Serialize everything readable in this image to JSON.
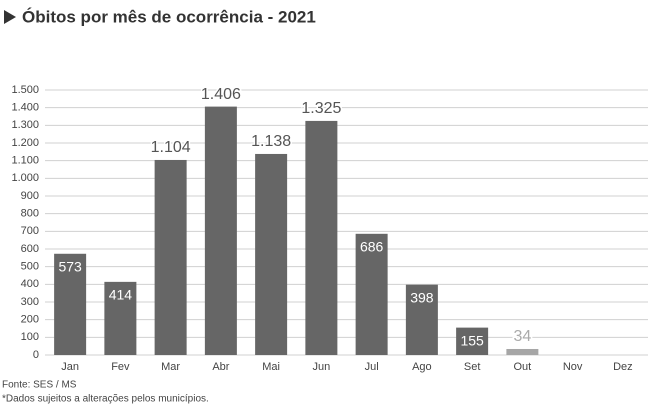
{
  "chart_data": {
    "type": "bar",
    "title": "Óbitos por mês de ocorrência - 2021",
    "categories": [
      "Jan",
      "Fev",
      "Mar",
      "Abr",
      "Mai",
      "Jun",
      "Jul",
      "Ago",
      "Set",
      "Out",
      "Nov",
      "Dez"
    ],
    "values": [
      573,
      414,
      1104,
      1406,
      1138,
      1325,
      686,
      398,
      155,
      34,
      null,
      null
    ],
    "value_labels": [
      "573",
      "414",
      "1.104",
      "1.406",
      "1.138",
      "1.325",
      "686",
      "398",
      "155",
      "34",
      null,
      null
    ],
    "colors": [
      "#666666",
      "#666666",
      "#666666",
      "#666666",
      "#666666",
      "#666666",
      "#666666",
      "#666666",
      "#666666",
      "#a6a6a6",
      "#666666",
      "#666666"
    ],
    "ylim": [
      0,
      1500
    ],
    "yticks": [
      0,
      100,
      200,
      300,
      400,
      500,
      600,
      700,
      800,
      900,
      {
        "value": 1000,
        "label": "1.000"
      },
      {
        "value": 1100,
        "label": "1.100"
      },
      {
        "value": 1200,
        "label": "1.200"
      },
      {
        "value": 1300,
        "label": "1.300"
      },
      {
        "value": 1400,
        "label": "1.400"
      },
      {
        "value": 1500,
        "label": "1.500"
      }
    ],
    "grid": true,
    "source": "Fonte: SES / MS",
    "note": "*Dados sujeitos a alterações pelos municípios."
  }
}
